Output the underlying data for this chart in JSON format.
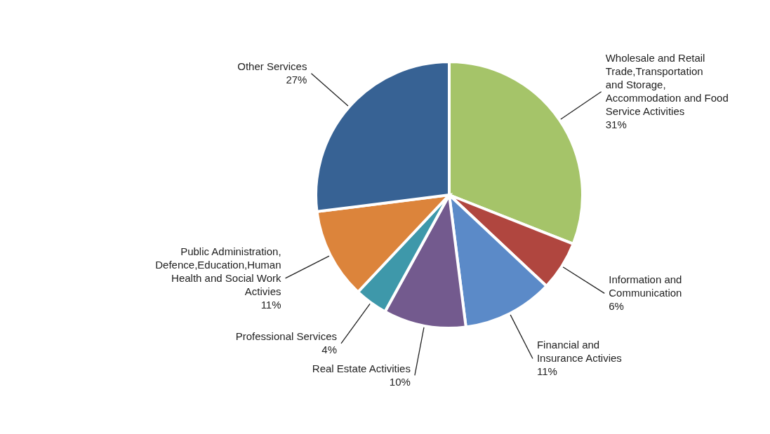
{
  "chart_data": {
    "type": "pie",
    "categories": [
      "Wholesale and Retail Trade,Transportation and Storage, Accommodation and Food Service Activities",
      "Information and Communication",
      "Financial and Insurance Activies",
      "Real Estate Activities",
      "Professional Services",
      "Public Administration, Defence,Education,Human Health and Social Work Activies",
      "Other Services"
    ],
    "values": [
      31,
      6,
      11,
      10,
      4,
      11,
      27
    ],
    "value_labels": [
      "31%",
      "6%",
      "11%",
      "10%",
      "4%",
      "11%",
      "27%"
    ],
    "colors": [
      "#a5c469",
      "#b0463f",
      "#5b8ac8",
      "#735a8e",
      "#3e98aa",
      "#dc843b",
      "#376294"
    ]
  }
}
